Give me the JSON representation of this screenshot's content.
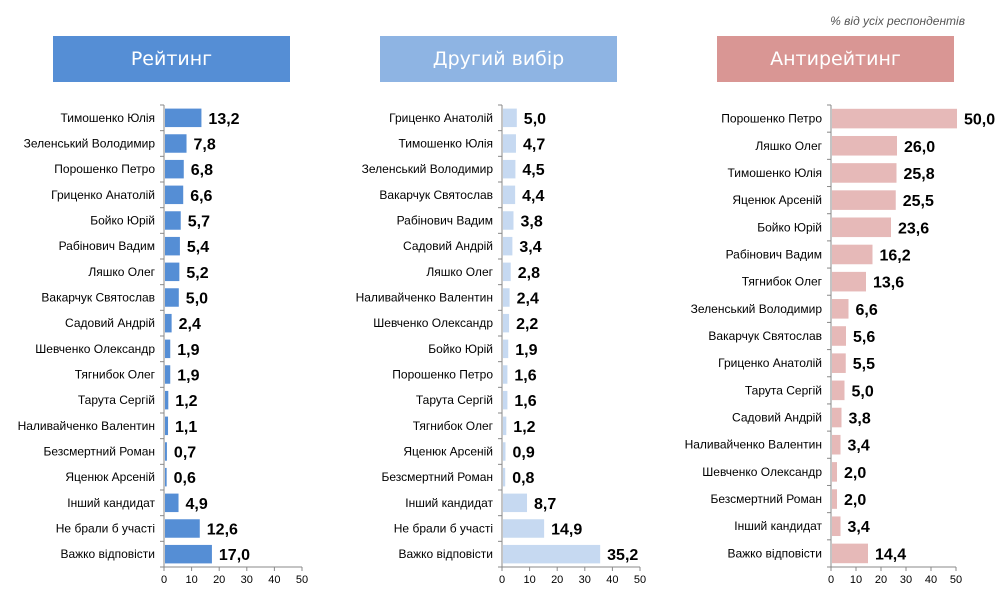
{
  "note": "% від усіх респондентів",
  "chart_data": [
    {
      "type": "bar",
      "title": "Рейтинг",
      "color": "#558ed5",
      "categories": [
        "Тимошенко Юлія",
        "Зеленський Володимир",
        "Порошенко Петро",
        "Гриценко Анатолій",
        "Бойко Юрій",
        "Рабінович Вадим",
        "Ляшко Олег",
        "Вакарчук Святослав",
        "Садовий Андрій",
        "Шевченко Олександр",
        "Тягнибок Олег",
        "Тарута Сергій",
        "Наливайченко Валентин",
        "Безсмертний Роман",
        "Яценюк Арсеній",
        "Інший кандидат",
        "Не брали б участі",
        "Важко відповісти"
      ],
      "values": [
        13.2,
        7.8,
        6.8,
        6.6,
        5.7,
        5.4,
        5.2,
        5.0,
        2.4,
        1.9,
        1.9,
        1.2,
        1.1,
        0.7,
        0.6,
        4.9,
        12.6,
        17.0
      ],
      "labels": [
        "13,2",
        "7,8",
        "6,8",
        "6,6",
        "5,7",
        "5,4",
        "5,2",
        "5,0",
        "2,4",
        "1,9",
        "1,9",
        "1,2",
        "1,1",
        "0,7",
        "0,6",
        "4,9",
        "12,6",
        "17,0"
      ],
      "xlim": [
        0,
        50
      ],
      "ticks": [
        "0",
        "10",
        "20",
        "30",
        "40",
        "50"
      ]
    },
    {
      "type": "bar",
      "title": "Другий вибір",
      "color": "#c6d9f1",
      "categories": [
        "Гриценко Анатолій",
        "Тимошенко Юлія",
        "Зеленський Володимир",
        "Вакарчук Святослав",
        "Рабінович Вадим",
        "Садовий Андрій",
        "Ляшко Олег",
        "Наливайченко Валентин",
        "Шевченко Олександр",
        "Бойко Юрій",
        "Порошенко Петро",
        "Тарута Сергій",
        "Тягнибок Олег",
        "Яценюк Арсеній",
        "Безсмертний Роман",
        "Інший кандидат",
        "Не брали б участі",
        "Важко відповісти"
      ],
      "values": [
        5.0,
        4.7,
        4.5,
        4.4,
        3.8,
        3.4,
        2.8,
        2.4,
        2.2,
        1.9,
        1.6,
        1.6,
        1.2,
        0.9,
        0.8,
        8.7,
        14.9,
        35.2
      ],
      "labels": [
        "5,0",
        "4,7",
        "4,5",
        "4,4",
        "3,8",
        "3,4",
        "2,8",
        "2,4",
        "2,2",
        "1,9",
        "1,6",
        "1,6",
        "1,2",
        "0,9",
        "0,8",
        "8,7",
        "14,9",
        "35,2"
      ],
      "xlim": [
        0,
        50
      ],
      "ticks": [
        "0",
        "10",
        "20",
        "30",
        "40",
        "50"
      ]
    },
    {
      "type": "bar",
      "title": "Антирейтинг",
      "color": "#e6b9b8",
      "categories": [
        "Порошенко Петро",
        "Ляшко Олег",
        "Тимошенко Юлія",
        "Яценюк Арсеній",
        "Бойко Юрій",
        "Рабінович Вадим",
        "Тягнибок Олег",
        "Зеленський Володимир",
        "Вакарчук Святослав",
        "Гриценко Анатолій",
        "Тарута Сергій",
        "Садовий Андрій",
        "Наливайченко Валентин",
        "Шевченко Олександр",
        "Безсмертний Роман",
        "Інший кандидат",
        "Важко відповісти"
      ],
      "values": [
        50.0,
        26.0,
        25.8,
        25.5,
        23.6,
        16.2,
        13.6,
        6.6,
        5.6,
        5.5,
        5.0,
        3.8,
        3.4,
        2.0,
        2.0,
        3.4,
        14.4
      ],
      "labels": [
        "50,0",
        "26,0",
        "25,8",
        "25,5",
        "23,6",
        "16,2",
        "13,6",
        "6,6",
        "5,6",
        "5,5",
        "5,0",
        "3,8",
        "3,4",
        "2,0",
        "2,0",
        "3,4",
        "14,4"
      ],
      "xlim": [
        0,
        50
      ],
      "ticks": [
        "0",
        "10",
        "20",
        "30",
        "40",
        "50"
      ]
    }
  ]
}
